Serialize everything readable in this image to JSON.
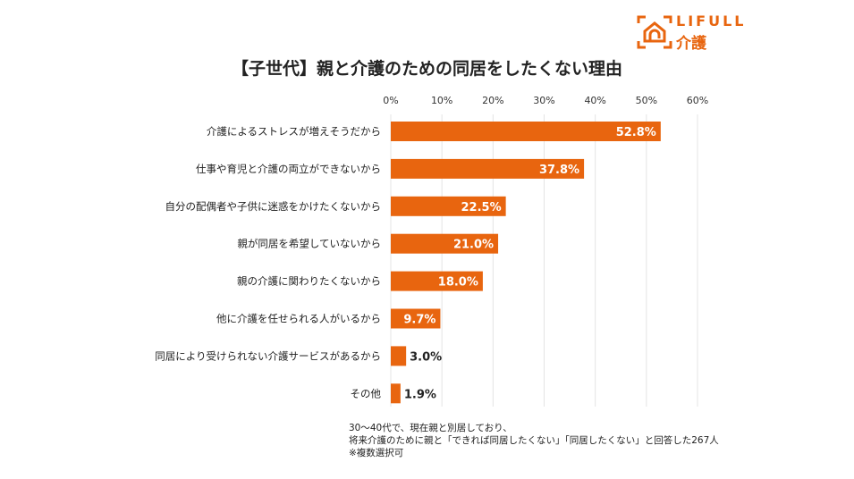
{
  "logo": {
    "text_en": "LIFULL",
    "text_jp": "介護"
  },
  "chart_data": {
    "type": "bar",
    "orientation": "horizontal",
    "title": "【子世代】親と介護のための同居をしたくない理由",
    "categories": [
      "介護によるストレスが増えそうだから",
      "仕事や育児と介護の両立ができないから",
      "自分の配偶者や子供に迷惑をかけたくないから",
      "親が同居を希望していないから",
      "親の介護に関わりたくないから",
      "他に介護を任せられる人がいるから",
      "同居により受けられない介護サービスがあるから",
      "その他"
    ],
    "values": [
      52.8,
      37.8,
      22.5,
      21.0,
      18.0,
      9.7,
      3.0,
      1.9
    ],
    "data_labels": [
      "52.8%",
      "37.8%",
      "22.5%",
      "21.0%",
      "18.0%",
      "9.7%",
      "3.0%",
      "1.9%"
    ],
    "xlim": [
      0,
      60
    ],
    "ticks": [
      "0%",
      "10%",
      "20%",
      "30%",
      "40%",
      "50%",
      "60%"
    ],
    "grid": true,
    "bar_color": "#e8650f"
  },
  "notes": [
    "30～40代で、現在親と別居しており、",
    "将来介護のために親と「できれば同居したくない」「同居したくない」と回答した267人",
    "※複数選択可"
  ]
}
